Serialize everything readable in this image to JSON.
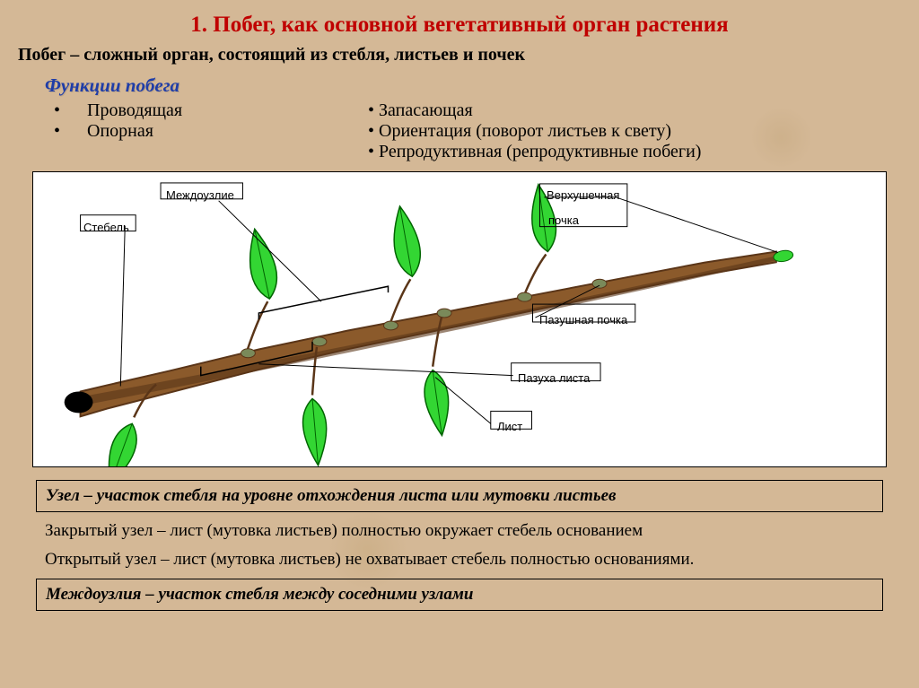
{
  "title": {
    "text": "1. Побег, как основной вегетативный орган растения",
    "color": "#c00000",
    "fontsize": 25
  },
  "definition": {
    "term": "Побег",
    "rest": " – сложный орган, состоящий из стебля, листьев и почек",
    "fontsize": 20
  },
  "subtitle": {
    "text": "Функции побега",
    "color": "#1f3da8",
    "fontsize": 21
  },
  "functions_left": [
    "Проводящая",
    "Опорная"
  ],
  "functions_right": [
    "Запасающая",
    "Ориентация (поворот листьев к свету)",
    "Репродуктивная (репродуктивные побеги)"
  ],
  "functions_fontsize": 20,
  "diagram": {
    "bg": "#ffffff",
    "border": "#000000",
    "label_fontsize": 13,
    "labels": {
      "internode": "Междоузлие",
      "stem": "Стебель",
      "apical_bud_1": "Верхушечная",
      "apical_bud_2": "почка",
      "axillary_bud": "Пазушная почка",
      "leaf_axil": "Пазуха листа",
      "leaf": "Лист"
    },
    "stem_color_dark": "#5a3518",
    "stem_color_light": "#8b5a2b",
    "leaf_fill": "#33d633",
    "leaf_stroke": "#006400",
    "bud_fill": "#7a8a5a",
    "bracket_color": "#000000"
  },
  "node_def": "Узел – участок стебля на уровне отхождения листа или мутовки листьев",
  "closed_node": "Закрытый узел – лист (мутовка листьев) полностью окружает стебель основанием",
  "open_node": "Открытый узел – лист (мутовка листьев) не охватывает стебель полностью основаниями.",
  "internode_def": "Междоузлия – участок стебля между соседними узлами",
  "body_fontsize": 19
}
